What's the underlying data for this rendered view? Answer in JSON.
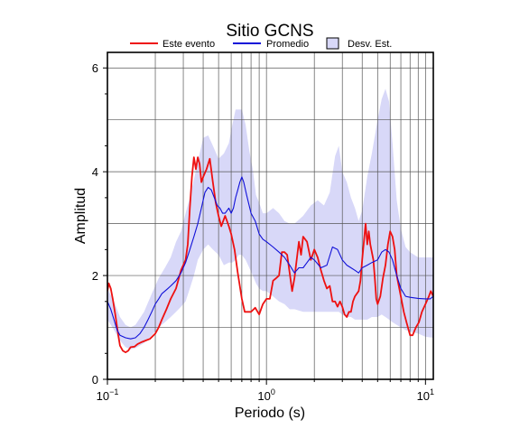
{
  "chart_data": {
    "type": "line",
    "title": "Sitio GCNS",
    "xlabel": "Periodo (s)",
    "ylabel": "Amplitud",
    "xscale": "log",
    "xlim": [
      0.1,
      11.2
    ],
    "ylim": [
      0,
      6.3
    ],
    "x_ticks": [
      {
        "value": 0.1,
        "base": "10",
        "exp": "−1"
      },
      {
        "value": 1,
        "base": "10",
        "exp": "0"
      },
      {
        "value": 10,
        "base": "10",
        "exp": "1"
      }
    ],
    "y_ticks": [
      0,
      2,
      4,
      6
    ],
    "grid": true,
    "legend_position": "top",
    "legend": [
      {
        "label": "Este evento",
        "type": "line",
        "color": "#ee1111"
      },
      {
        "label": "Promedio",
        "type": "line",
        "color": "#1010d8"
      },
      {
        "label": "Desv. Est.",
        "type": "band",
        "color": "#d8d8f8"
      }
    ],
    "series": [
      {
        "name": "Este evento",
        "color": "#ee1111",
        "points": [
          [
            0.1,
            1.7
          ],
          [
            0.102,
            1.85
          ],
          [
            0.105,
            1.75
          ],
          [
            0.108,
            1.55
          ],
          [
            0.112,
            1.25
          ],
          [
            0.117,
            0.85
          ],
          [
            0.12,
            0.65
          ],
          [
            0.125,
            0.55
          ],
          [
            0.13,
            0.52
          ],
          [
            0.135,
            0.55
          ],
          [
            0.14,
            0.62
          ],
          [
            0.148,
            0.63
          ],
          [
            0.155,
            0.68
          ],
          [
            0.165,
            0.72
          ],
          [
            0.175,
            0.75
          ],
          [
            0.185,
            0.78
          ],
          [
            0.2,
            0.88
          ],
          [
            0.21,
            1.0
          ],
          [
            0.22,
            1.15
          ],
          [
            0.235,
            1.35
          ],
          [
            0.25,
            1.55
          ],
          [
            0.27,
            1.75
          ],
          [
            0.29,
            2.1
          ],
          [
            0.31,
            2.3
          ],
          [
            0.32,
            2.6
          ],
          [
            0.33,
            3.3
          ],
          [
            0.34,
            3.9
          ],
          [
            0.35,
            4.28
          ],
          [
            0.36,
            4.05
          ],
          [
            0.37,
            4.28
          ],
          [
            0.38,
            4.15
          ],
          [
            0.39,
            3.8
          ],
          [
            0.4,
            3.9
          ],
          [
            0.42,
            4.05
          ],
          [
            0.44,
            4.25
          ],
          [
            0.46,
            3.8
          ],
          [
            0.48,
            3.4
          ],
          [
            0.5,
            3.15
          ],
          [
            0.52,
            2.95
          ],
          [
            0.55,
            3.15
          ],
          [
            0.58,
            2.95
          ],
          [
            0.6,
            2.8
          ],
          [
            0.63,
            2.5
          ],
          [
            0.66,
            2.05
          ],
          [
            0.7,
            1.55
          ],
          [
            0.73,
            1.3
          ],
          [
            0.76,
            1.3
          ],
          [
            0.8,
            1.3
          ],
          [
            0.85,
            1.38
          ],
          [
            0.9,
            1.25
          ],
          [
            0.95,
            1.45
          ],
          [
            1.0,
            1.55
          ],
          [
            1.05,
            1.55
          ],
          [
            1.1,
            1.9
          ],
          [
            1.15,
            1.95
          ],
          [
            1.2,
            2.0
          ],
          [
            1.25,
            2.45
          ],
          [
            1.3,
            2.45
          ],
          [
            1.35,
            2.4
          ],
          [
            1.4,
            2.05
          ],
          [
            1.45,
            1.7
          ],
          [
            1.5,
            1.95
          ],
          [
            1.6,
            2.65
          ],
          [
            1.65,
            2.4
          ],
          [
            1.7,
            2.75
          ],
          [
            1.8,
            2.65
          ],
          [
            1.9,
            2.3
          ],
          [
            2.0,
            2.5
          ],
          [
            2.1,
            2.35
          ],
          [
            2.2,
            2.1
          ],
          [
            2.3,
            1.9
          ],
          [
            2.4,
            1.75
          ],
          [
            2.5,
            1.8
          ],
          [
            2.6,
            1.5
          ],
          [
            2.7,
            1.5
          ],
          [
            2.8,
            1.4
          ],
          [
            2.9,
            1.5
          ],
          [
            3.0,
            1.4
          ],
          [
            3.1,
            1.25
          ],
          [
            3.2,
            1.2
          ],
          [
            3.3,
            1.3
          ],
          [
            3.4,
            1.3
          ],
          [
            3.5,
            1.5
          ],
          [
            3.6,
            1.6
          ],
          [
            3.8,
            1.7
          ],
          [
            3.9,
            1.9
          ],
          [
            4.0,
            2.3
          ],
          [
            4.1,
            2.65
          ],
          [
            4.2,
            3.0
          ],
          [
            4.3,
            2.6
          ],
          [
            4.4,
            2.85
          ],
          [
            4.5,
            2.6
          ],
          [
            4.7,
            2.3
          ],
          [
            4.8,
            1.95
          ],
          [
            4.9,
            1.55
          ],
          [
            5.0,
            1.45
          ],
          [
            5.2,
            1.6
          ],
          [
            5.4,
            1.95
          ],
          [
            5.6,
            2.2
          ],
          [
            5.8,
            2.6
          ],
          [
            6.0,
            2.85
          ],
          [
            6.2,
            2.75
          ],
          [
            6.4,
            2.5
          ],
          [
            6.6,
            2.0
          ],
          [
            7.0,
            1.6
          ],
          [
            7.3,
            1.3
          ],
          [
            7.6,
            1.1
          ],
          [
            8.0,
            0.85
          ],
          [
            8.3,
            0.85
          ],
          [
            8.7,
            1.0
          ],
          [
            9.1,
            1.1
          ],
          [
            9.5,
            1.3
          ],
          [
            10.0,
            1.45
          ],
          [
            10.5,
            1.6
          ],
          [
            10.8,
            1.7
          ],
          [
            11.2,
            1.6
          ]
        ]
      },
      {
        "name": "Promedio",
        "color": "#1010d8",
        "points": [
          [
            0.1,
            1.5
          ],
          [
            0.105,
            1.35
          ],
          [
            0.11,
            1.15
          ],
          [
            0.115,
            0.95
          ],
          [
            0.12,
            0.85
          ],
          [
            0.13,
            0.8
          ],
          [
            0.14,
            0.78
          ],
          [
            0.15,
            0.8
          ],
          [
            0.16,
            0.88
          ],
          [
            0.17,
            1.0
          ],
          [
            0.18,
            1.15
          ],
          [
            0.19,
            1.3
          ],
          [
            0.2,
            1.45
          ],
          [
            0.21,
            1.55
          ],
          [
            0.22,
            1.65
          ],
          [
            0.23,
            1.7
          ],
          [
            0.24,
            1.75
          ],
          [
            0.25,
            1.8
          ],
          [
            0.27,
            1.9
          ],
          [
            0.29,
            2.05
          ],
          [
            0.31,
            2.25
          ],
          [
            0.33,
            2.5
          ],
          [
            0.35,
            2.75
          ],
          [
            0.37,
            3.0
          ],
          [
            0.39,
            3.3
          ],
          [
            0.41,
            3.6
          ],
          [
            0.43,
            3.7
          ],
          [
            0.45,
            3.65
          ],
          [
            0.47,
            3.5
          ],
          [
            0.49,
            3.35
          ],
          [
            0.51,
            3.3
          ],
          [
            0.53,
            3.2
          ],
          [
            0.55,
            3.2
          ],
          [
            0.58,
            3.3
          ],
          [
            0.6,
            3.2
          ],
          [
            0.62,
            3.3
          ],
          [
            0.64,
            3.5
          ],
          [
            0.66,
            3.65
          ],
          [
            0.68,
            3.8
          ],
          [
            0.7,
            3.9
          ],
          [
            0.72,
            3.8
          ],
          [
            0.75,
            3.55
          ],
          [
            0.8,
            3.2
          ],
          [
            0.85,
            3.05
          ],
          [
            0.9,
            2.8
          ],
          [
            0.95,
            2.7
          ],
          [
            1.0,
            2.65
          ],
          [
            1.1,
            2.55
          ],
          [
            1.2,
            2.45
          ],
          [
            1.3,
            2.35
          ],
          [
            1.4,
            2.2
          ],
          [
            1.5,
            2.05
          ],
          [
            1.6,
            2.15
          ],
          [
            1.7,
            2.15
          ],
          [
            1.8,
            2.25
          ],
          [
            1.9,
            2.35
          ],
          [
            2.0,
            2.3
          ],
          [
            2.2,
            2.15
          ],
          [
            2.4,
            2.2
          ],
          [
            2.6,
            2.55
          ],
          [
            2.8,
            2.5
          ],
          [
            3.0,
            2.3
          ],
          [
            3.2,
            2.2
          ],
          [
            3.4,
            2.15
          ],
          [
            3.6,
            2.1
          ],
          [
            3.8,
            2.05
          ],
          [
            4.0,
            2.15
          ],
          [
            4.3,
            2.2
          ],
          [
            4.6,
            2.25
          ],
          [
            5.0,
            2.3
          ],
          [
            5.3,
            2.45
          ],
          [
            5.6,
            2.5
          ],
          [
            5.9,
            2.45
          ],
          [
            6.2,
            2.3
          ],
          [
            6.6,
            2.0
          ],
          [
            7.0,
            1.75
          ],
          [
            7.5,
            1.6
          ],
          [
            8.0,
            1.58
          ],
          [
            9.0,
            1.56
          ],
          [
            10.0,
            1.55
          ],
          [
            10.7,
            1.55
          ],
          [
            11.2,
            1.6
          ]
        ]
      }
    ],
    "band": {
      "name": "Desv. Est.",
      "color": "#d8d8f8",
      "upper": [
        [
          0.1,
          1.75
        ],
        [
          0.11,
          1.5
        ],
        [
          0.12,
          1.2
        ],
        [
          0.13,
          1.05
        ],
        [
          0.14,
          1.0
        ],
        [
          0.15,
          1.05
        ],
        [
          0.17,
          1.3
        ],
        [
          0.19,
          1.65
        ],
        [
          0.21,
          1.95
        ],
        [
          0.23,
          2.15
        ],
        [
          0.25,
          2.35
        ],
        [
          0.27,
          2.65
        ],
        [
          0.29,
          2.85
        ],
        [
          0.31,
          3.2
        ],
        [
          0.33,
          3.5
        ],
        [
          0.35,
          3.85
        ],
        [
          0.37,
          4.2
        ],
        [
          0.4,
          4.65
        ],
        [
          0.43,
          4.7
        ],
        [
          0.46,
          4.5
        ],
        [
          0.5,
          4.25
        ],
        [
          0.54,
          4.35
        ],
        [
          0.58,
          4.55
        ],
        [
          0.61,
          4.9
        ],
        [
          0.64,
          5.2
        ],
        [
          0.67,
          5.2
        ],
        [
          0.7,
          5.2
        ],
        [
          0.74,
          4.9
        ],
        [
          0.78,
          4.4
        ],
        [
          0.82,
          4.05
        ],
        [
          0.86,
          3.55
        ],
        [
          0.9,
          3.4
        ],
        [
          0.95,
          3.2
        ],
        [
          1.0,
          3.2
        ],
        [
          1.1,
          3.3
        ],
        [
          1.2,
          3.2
        ],
        [
          1.3,
          3.05
        ],
        [
          1.4,
          3.0
        ],
        [
          1.5,
          3.0
        ],
        [
          1.7,
          3.15
        ],
        [
          1.9,
          3.35
        ],
        [
          2.1,
          3.45
        ],
        [
          2.3,
          3.35
        ],
        [
          2.5,
          3.6
        ],
        [
          2.7,
          4.3
        ],
        [
          2.85,
          4.5
        ],
        [
          3.0,
          4.0
        ],
        [
          3.2,
          3.8
        ],
        [
          3.4,
          3.5
        ],
        [
          3.6,
          3.3
        ],
        [
          3.8,
          3.05
        ],
        [
          4.0,
          3.25
        ],
        [
          4.3,
          3.9
        ],
        [
          4.6,
          4.35
        ],
        [
          5.0,
          5.0
        ],
        [
          5.3,
          5.4
        ],
        [
          5.6,
          5.6
        ],
        [
          5.9,
          5.35
        ],
        [
          6.2,
          4.55
        ],
        [
          6.6,
          3.45
        ],
        [
          7.0,
          2.9
        ],
        [
          7.5,
          2.55
        ],
        [
          8.0,
          2.45
        ],
        [
          9.0,
          2.35
        ],
        [
          10.0,
          2.35
        ],
        [
          11.2,
          2.35
        ]
      ],
      "lower": [
        [
          0.1,
          1.15
        ],
        [
          0.11,
          0.95
        ],
        [
          0.12,
          0.75
        ],
        [
          0.13,
          0.62
        ],
        [
          0.14,
          0.58
        ],
        [
          0.15,
          0.6
        ],
        [
          0.17,
          0.7
        ],
        [
          0.19,
          0.85
        ],
        [
          0.21,
          1.0
        ],
        [
          0.23,
          1.1
        ],
        [
          0.25,
          1.2
        ],
        [
          0.27,
          1.3
        ],
        [
          0.29,
          1.4
        ],
        [
          0.31,
          1.5
        ],
        [
          0.33,
          1.75
        ],
        [
          0.35,
          2.0
        ],
        [
          0.37,
          2.3
        ],
        [
          0.4,
          2.5
        ],
        [
          0.43,
          2.6
        ],
        [
          0.46,
          2.5
        ],
        [
          0.5,
          2.4
        ],
        [
          0.54,
          2.2
        ],
        [
          0.58,
          2.25
        ],
        [
          0.61,
          2.25
        ],
        [
          0.64,
          2.3
        ],
        [
          0.67,
          2.4
        ],
        [
          0.7,
          2.4
        ],
        [
          0.74,
          2.3
        ],
        [
          0.78,
          2.15
        ],
        [
          0.82,
          2.0
        ],
        [
          0.86,
          1.85
        ],
        [
          0.9,
          1.75
        ],
        [
          0.95,
          1.7
        ],
        [
          1.0,
          1.7
        ],
        [
          1.1,
          1.6
        ],
        [
          1.2,
          1.5
        ],
        [
          1.3,
          1.45
        ],
        [
          1.4,
          1.35
        ],
        [
          1.5,
          1.35
        ],
        [
          1.7,
          1.3
        ],
        [
          1.9,
          1.3
        ],
        [
          2.1,
          1.3
        ],
        [
          2.3,
          1.3
        ],
        [
          2.5,
          1.3
        ],
        [
          2.7,
          1.3
        ],
        [
          2.85,
          1.3
        ],
        [
          3.0,
          1.25
        ],
        [
          3.2,
          1.2
        ],
        [
          3.4,
          1.2
        ],
        [
          3.6,
          1.15
        ],
        [
          3.8,
          1.15
        ],
        [
          4.0,
          1.15
        ],
        [
          4.3,
          1.15
        ],
        [
          4.6,
          1.2
        ],
        [
          5.0,
          1.2
        ],
        [
          5.3,
          1.25
        ],
        [
          5.6,
          1.2
        ],
        [
          5.9,
          1.15
        ],
        [
          6.2,
          1.1
        ],
        [
          6.6,
          1.05
        ],
        [
          7.0,
          1.0
        ],
        [
          7.5,
          0.95
        ],
        [
          8.0,
          0.92
        ],
        [
          9.0,
          0.88
        ],
        [
          10.0,
          0.82
        ],
        [
          11.2,
          0.8
        ]
      ]
    }
  }
}
